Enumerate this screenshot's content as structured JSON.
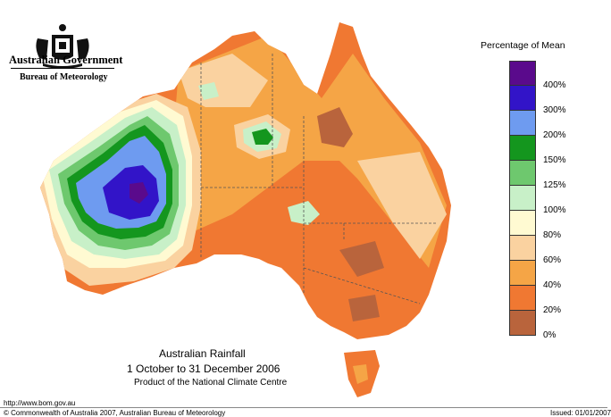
{
  "header": {
    "government": "Australian Government",
    "bureau": "Bureau of Meteorology"
  },
  "legend": {
    "title": "Percentage of Mean",
    "items": [
      {
        "label": "400%",
        "color": "#5a0a8c"
      },
      {
        "label": "300%",
        "color": "#3214c8"
      },
      {
        "label": "200%",
        "color": "#6e9bf0"
      },
      {
        "label": "150%",
        "color": "#14961e"
      },
      {
        "label": "125%",
        "color": "#6ec86e"
      },
      {
        "label": "100%",
        "color": "#c8f0c8"
      },
      {
        "label": "80%",
        "color": "#fffad2"
      },
      {
        "label": "60%",
        "color": "#fad2a0"
      },
      {
        "label": "40%",
        "color": "#f5a546"
      },
      {
        "label": "20%",
        "color": "#f07832"
      },
      {
        "label": "0%",
        "color": "#b9643c"
      }
    ]
  },
  "map": {
    "title": "Australian Rainfall",
    "period": "1 October to 31 December 2006",
    "credit": "Product of the National Climate Centre"
  },
  "footer": {
    "url": "http://www.bom.gov.au",
    "copyright": "© Commonwealth of Australia 2007, Australian Bureau of Meteorology",
    "issued": "Issued: 01/01/2007"
  }
}
